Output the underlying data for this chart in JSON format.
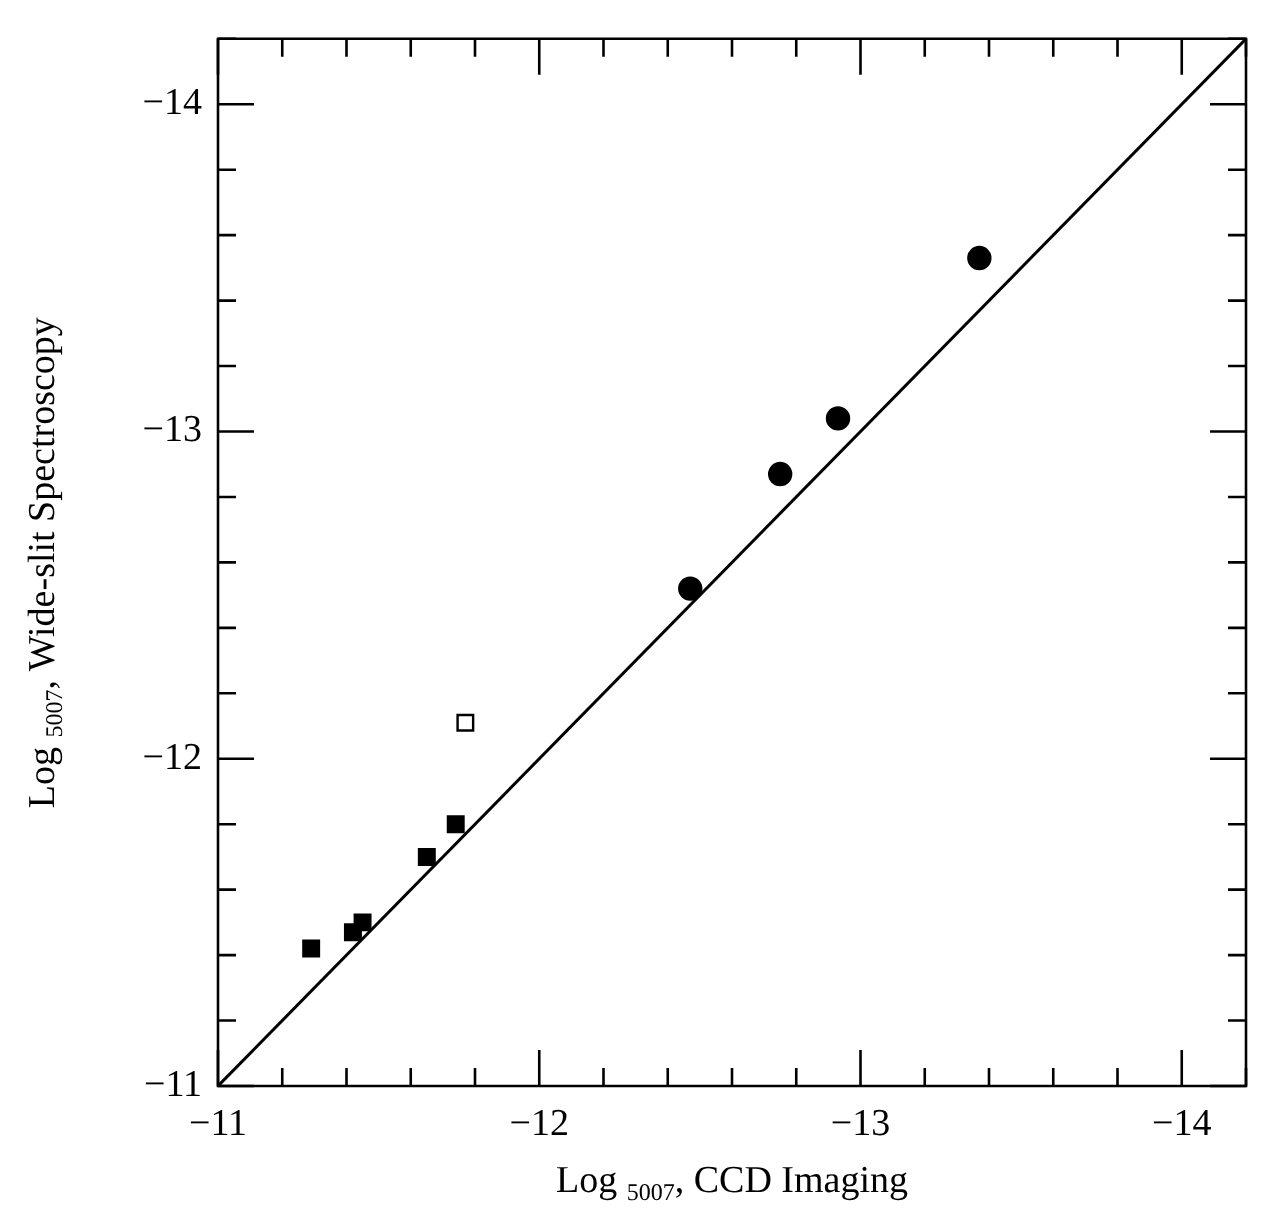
{
  "chart_data": {
    "type": "scatter",
    "xlabel": "Log $_{5007}$, CCD Imaging",
    "ylabel": "Log $_{5007}$, Wide-slit Spectroscopy",
    "xlim": [
      -11,
      -14.2
    ],
    "ylim": [
      -11,
      -14.2
    ],
    "xticks": [
      -11,
      {
        "value": -11.2,
        "label": null
      },
      {
        "value": -11.4,
        "label": null
      },
      {
        "value": -11.6,
        "label": null
      },
      {
        "value": -11.8,
        "label": null
      },
      -12,
      {
        "value": -12.2,
        "label": null
      },
      {
        "value": -12.4,
        "label": null
      },
      {
        "value": -12.6,
        "label": null
      },
      {
        "value": -12.8,
        "label": null
      },
      -13,
      {
        "value": -13.2,
        "label": null
      },
      {
        "value": -13.4,
        "label": null
      },
      {
        "value": -13.6,
        "label": null
      },
      {
        "value": -13.8,
        "label": null
      },
      -14,
      {
        "value": -14.2,
        "label": null
      }
    ],
    "yticks": [
      -11,
      {
        "value": -11.2,
        "label": null
      },
      {
        "value": -11.4,
        "label": null
      },
      {
        "value": -11.6,
        "label": null
      },
      {
        "value": -11.8,
        "label": null
      },
      -12,
      {
        "value": -12.2,
        "label": null
      },
      {
        "value": -12.4,
        "label": null
      },
      {
        "value": -12.6,
        "label": null
      },
      {
        "value": -12.8,
        "label": null
      },
      -13,
      {
        "value": -13.2,
        "label": null
      },
      {
        "value": -13.4,
        "label": null
      },
      {
        "value": -13.6,
        "label": null
      },
      {
        "value": -13.8,
        "label": null
      },
      -14,
      {
        "value": -14.2,
        "label": null
      }
    ],
    "grid": false,
    "legend": false,
    "series": [
      {
        "marker": "square",
        "color": "#000000",
        "x": [
          -11.29,
          -11.42,
          -11.45,
          -11.65,
          -11.74
        ],
        "values": [
          -11.42,
          -11.47,
          -11.5,
          -11.7,
          -11.8
        ]
      },
      {
        "marker": "square",
        "color": "#ffffff",
        "x": [
          -11.77
        ],
        "values": [
          -12.11
        ]
      },
      {
        "marker": "circle",
        "color": "#000000",
        "x": [
          -12.47,
          -12.75,
          -12.93,
          -13.37
        ],
        "values": [
          -12.52,
          -12.87,
          -13.04,
          -13.53
        ]
      },
      {
        "type": "line",
        "marker": "none",
        "color": "#000000",
        "x": [
          -11,
          -14.2
        ],
        "values": [
          -11,
          -14.2
        ]
      }
    ]
  }
}
